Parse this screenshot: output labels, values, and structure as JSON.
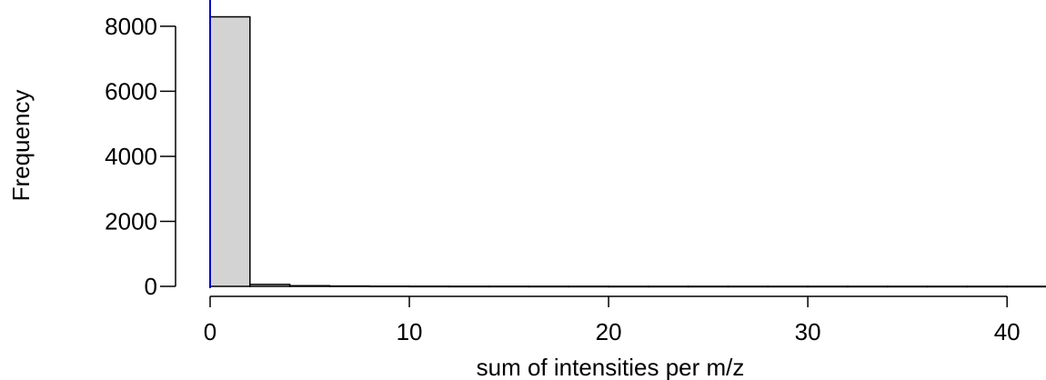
{
  "chart_data": {
    "type": "bar",
    "title": "",
    "xlabel": "sum of intensities per m/z",
    "ylabel": "Frequency",
    "xlim": [
      0,
      42
    ],
    "ylim": [
      0,
      8500
    ],
    "x_ticks": [
      0,
      10,
      20,
      30,
      40
    ],
    "y_ticks": [
      0,
      2000,
      4000,
      6000,
      8000
    ],
    "bin_width": 2,
    "bins": [
      {
        "x0": 0,
        "x1": 2,
        "count": 8290
      },
      {
        "x0": 2,
        "x1": 4,
        "count": 60
      },
      {
        "x0": 4,
        "x1": 6,
        "count": 20
      },
      {
        "x0": 6,
        "x1": 8,
        "count": 10
      },
      {
        "x0": 8,
        "x1": 10,
        "count": 6
      },
      {
        "x0": 10,
        "x1": 12,
        "count": 4
      },
      {
        "x0": 12,
        "x1": 14,
        "count": 3
      },
      {
        "x0": 14,
        "x1": 16,
        "count": 3
      },
      {
        "x0": 16,
        "x1": 18,
        "count": 2
      },
      {
        "x0": 18,
        "x1": 20,
        "count": 2
      },
      {
        "x0": 20,
        "x1": 22,
        "count": 1
      },
      {
        "x0": 22,
        "x1": 24,
        "count": 1
      },
      {
        "x0": 24,
        "x1": 26,
        "count": 1
      },
      {
        "x0": 26,
        "x1": 28,
        "count": 1
      },
      {
        "x0": 28,
        "x1": 30,
        "count": 1
      },
      {
        "x0": 30,
        "x1": 32,
        "count": 1
      },
      {
        "x0": 32,
        "x1": 34,
        "count": 1
      },
      {
        "x0": 34,
        "x1": 36,
        "count": 1
      },
      {
        "x0": 36,
        "x1": 38,
        "count": 1
      },
      {
        "x0": 38,
        "x1": 40,
        "count": 1
      },
      {
        "x0": 40,
        "x1": 42,
        "count": 1
      }
    ],
    "bar_fill": "#d3d3d3",
    "bar_stroke": "#000000",
    "reference_line": {
      "x": 0,
      "color": "#0000cc"
    },
    "grid": false,
    "legend": "none"
  }
}
